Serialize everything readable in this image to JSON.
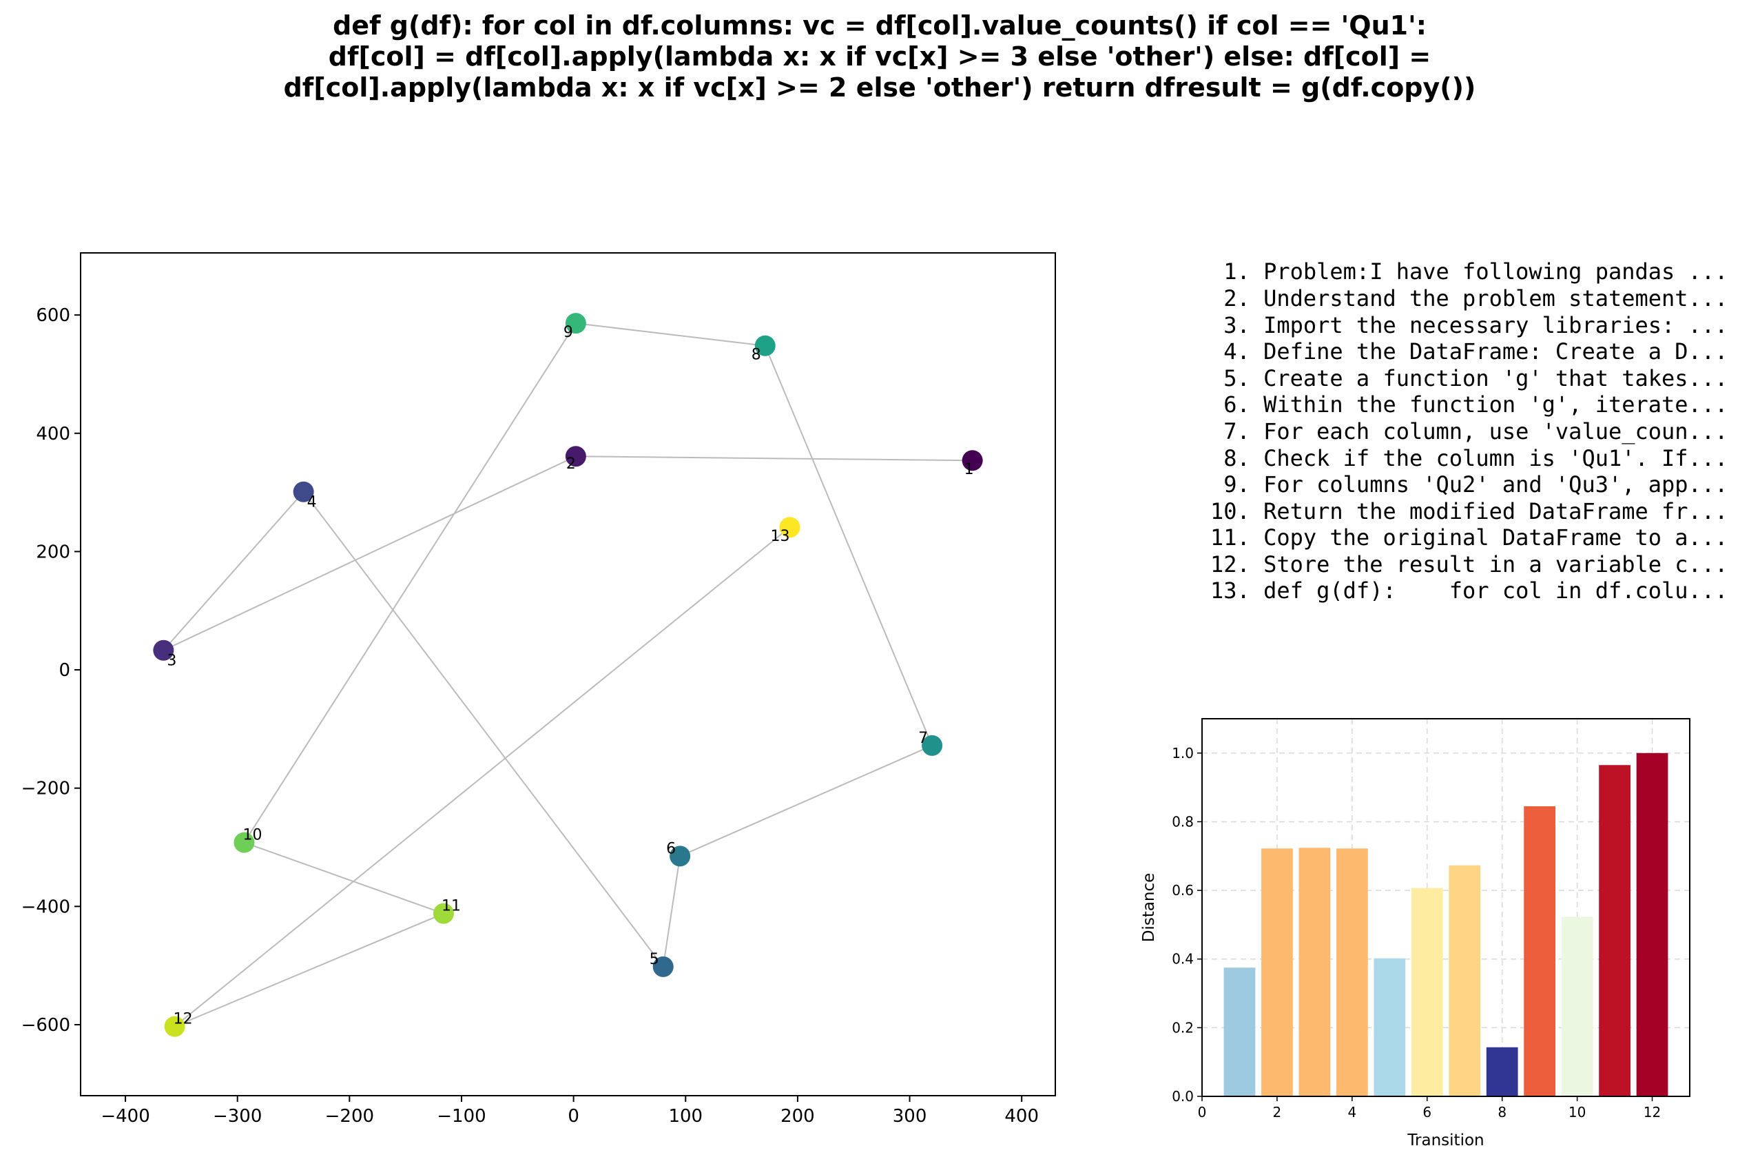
{
  "title_lines": [
    "def g(df):    for col in df.columns:        vc = df[col].value_counts()        if col == 'Qu1':",
    "df[col] = df[col].apply(lambda x: x if vc[x] >= 3 else 'other')        else:            df[col] =",
    "df[col].apply(lambda x: x if vc[x] >= 2 else 'other')    return dfresult = g(df.copy())"
  ],
  "steps": [
    " 1. Problem:I have following pandas ...",
    " 2. Understand the problem statement...",
    " 3. Import the necessary libraries: ...",
    " 4. Define the DataFrame: Create a D...",
    " 5. Create a function 'g' that takes...",
    " 6. Within the function 'g', iterate...",
    " 7. For each column, use 'value_coun...",
    " 8. Check if the column is 'Qu1'. If...",
    " 9. For columns 'Qu2' and 'Qu3', app...",
    "10. Return the modified DataFrame fr...",
    "11. Copy the original DataFrame to a...",
    "12. Store the result in a variable c...",
    "13. def g(df):    for col in df.colu..."
  ],
  "chart_data": [
    {
      "type": "scatter",
      "xlim": [
        -440,
        430
      ],
      "ylim": [
        -720,
        705
      ],
      "xticks": [
        -400,
        -300,
        -200,
        -100,
        0,
        100,
        200,
        300,
        400
      ],
      "yticks": [
        -600,
        -400,
        -200,
        0,
        200,
        400,
        600
      ],
      "xtick_labels": [
        "−400",
        "−300",
        "−200",
        "−100",
        "0",
        "100",
        "200",
        "300",
        "400"
      ],
      "ytick_labels": [
        "−600",
        "−400",
        "−200",
        "0",
        "200",
        "400",
        "600"
      ],
      "connected_in_order": true,
      "line_color": "#bbbbbb",
      "points": [
        {
          "label": "1",
          "x": 356,
          "y": 354,
          "color": "#440154"
        },
        {
          "label": "2",
          "x": 2,
          "y": 361,
          "color": "#481a6c"
        },
        {
          "label": "3",
          "x": -366,
          "y": 33,
          "color": "#472f7d"
        },
        {
          "label": "4",
          "x": -241,
          "y": 301,
          "color": "#3e4a89"
        },
        {
          "label": "5",
          "x": 80,
          "y": -502,
          "color": "#31688e"
        },
        {
          "label": "6",
          "x": 95,
          "y": -315,
          "color": "#2a788e"
        },
        {
          "label": "7",
          "x": 320,
          "y": -128,
          "color": "#21918c"
        },
        {
          "label": "8",
          "x": 171,
          "y": 548,
          "color": "#1fa187"
        },
        {
          "label": "9",
          "x": 2,
          "y": 586,
          "color": "#35b779"
        },
        {
          "label": "10",
          "x": -294,
          "y": -292,
          "color": "#6ece58"
        },
        {
          "label": "11",
          "x": -116,
          "y": -412,
          "color": "#9fda3a"
        },
        {
          "label": "12",
          "x": -356,
          "y": -603,
          "color": "#cae11f"
        },
        {
          "label": "13",
          "x": 193,
          "y": 241,
          "color": "#fde725"
        }
      ]
    },
    {
      "type": "bar",
      "xlabel": "Transition",
      "ylabel": "Distance",
      "xlim": [
        0,
        13
      ],
      "ylim": [
        0,
        1.1
      ],
      "xticks": [
        0,
        2,
        4,
        6,
        8,
        10,
        12
      ],
      "yticks": [
        0.0,
        0.2,
        0.4,
        0.6,
        0.8,
        1.0
      ],
      "xtick_labels": [
        "0",
        "2",
        "4",
        "6",
        "8",
        "10",
        "12"
      ],
      "ytick_labels": [
        "0.0",
        "0.2",
        "0.4",
        "0.6",
        "0.8",
        "1.0"
      ],
      "grid": true,
      "categories": [
        1,
        2,
        3,
        4,
        5,
        6,
        7,
        8,
        9,
        10,
        11,
        12
      ],
      "values": [
        0.375,
        0.722,
        0.724,
        0.722,
        0.402,
        0.607,
        0.673,
        0.143,
        0.845,
        0.523,
        0.965,
        1.0
      ],
      "colors": [
        "#9ecae1",
        "#fdb96e",
        "#fdb96e",
        "#fdb96e",
        "#abd9e9",
        "#feeda1",
        "#fed585",
        "#313695",
        "#ec5d3b",
        "#ecf7e1",
        "#bd1126",
        "#a50026"
      ]
    }
  ]
}
